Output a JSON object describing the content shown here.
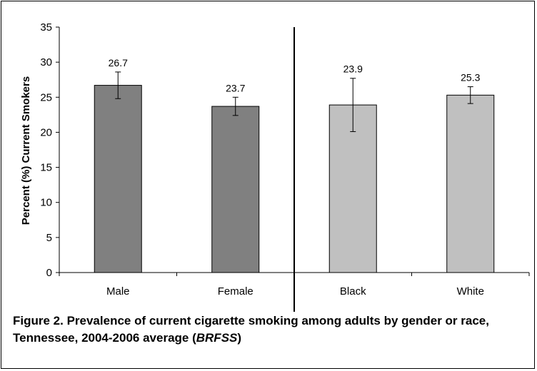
{
  "chart_data": {
    "type": "bar",
    "categories": [
      "Male",
      "Female",
      "Black",
      "White"
    ],
    "values": [
      26.7,
      23.7,
      23.9,
      25.3
    ],
    "value_labels": [
      "26.7",
      "23.7",
      "23.9",
      "25.3"
    ],
    "error_bars": {
      "lower": [
        24.8,
        22.4,
        20.1,
        24.1
      ],
      "upper": [
        28.6,
        25.0,
        27.7,
        26.5
      ]
    },
    "bar_colors": [
      "#808080",
      "#808080",
      "#c0c0c0",
      "#c0c0c0"
    ],
    "groups": [
      {
        "categories": [
          "Male",
          "Female"
        ]
      },
      {
        "categories": [
          "Black",
          "White"
        ]
      }
    ],
    "group_separator": "vertical line between Female and Black",
    "ylabel": "Percent (%) Current Smokers",
    "xlabel": "",
    "ylim": [
      0,
      35
    ],
    "yticks": [
      "0",
      "5",
      "10",
      "15",
      "20",
      "25",
      "30",
      "35"
    ],
    "grid": false,
    "legend": "none"
  },
  "caption": {
    "main": "Figure 2.  Prevalence of current cigarette smoking among adults by gender or race, Tennessee, 2004-2006 average (",
    "source": "BRFSS",
    "end": ")"
  }
}
